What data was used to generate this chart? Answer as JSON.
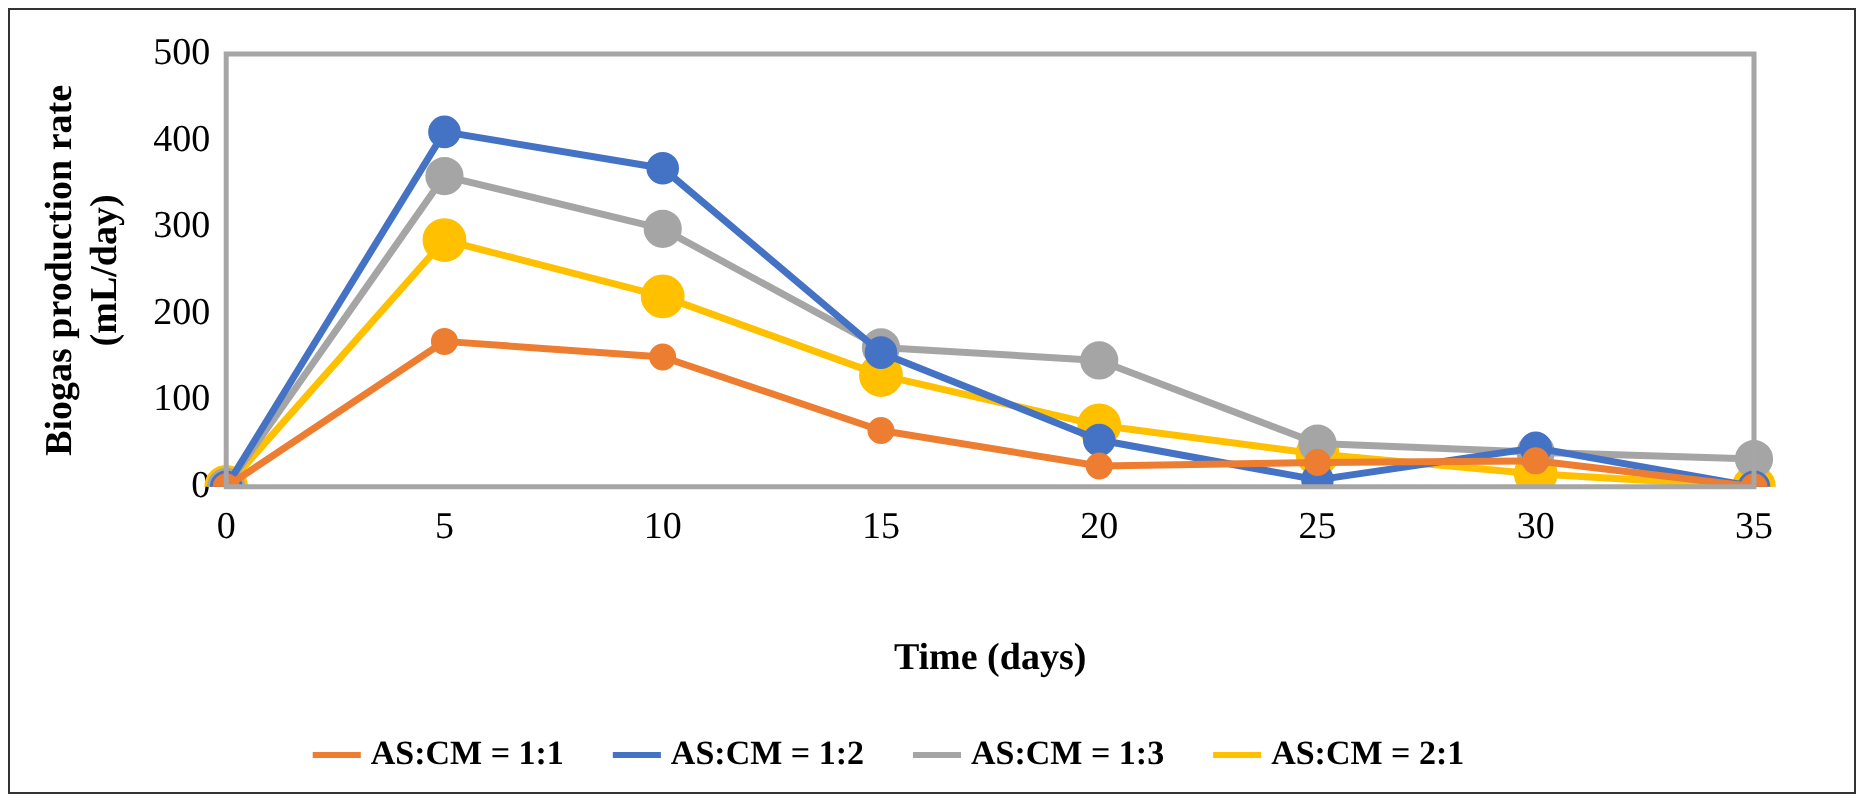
{
  "chart_data": {
    "type": "line",
    "xlabel": "Time (days)",
    "ylabel": "Biogas production rate (mL/day)",
    "categories": [
      "0",
      "5",
      "10",
      "15",
      "20",
      "25",
      "30",
      "35"
    ],
    "ylim": [
      0,
      500
    ],
    "yticks": [
      0,
      100,
      200,
      300,
      400,
      500
    ],
    "grid": false,
    "legend": "bottom",
    "marker": "circle",
    "line_style": "solid",
    "series": [
      {
        "name": "AS:CM = 1:1",
        "color": "#ed7d31",
        "values": [
          0,
          168,
          150,
          65,
          24,
          28,
          30,
          0
        ]
      },
      {
        "name": "AS:CM = 1:2",
        "color": "#4472c4",
        "values": [
          0,
          410,
          368,
          155,
          54,
          8,
          45,
          0
        ]
      },
      {
        "name": "AS:CM = 1:3",
        "color": "#a5a5a5",
        "values": [
          0,
          359,
          298,
          161,
          146,
          50,
          40,
          32
        ]
      },
      {
        "name": "AS:CM = 2:1",
        "color": "#ffc000",
        "values": [
          0,
          285,
          220,
          129,
          71,
          38,
          15,
          0
        ]
      }
    ]
  }
}
